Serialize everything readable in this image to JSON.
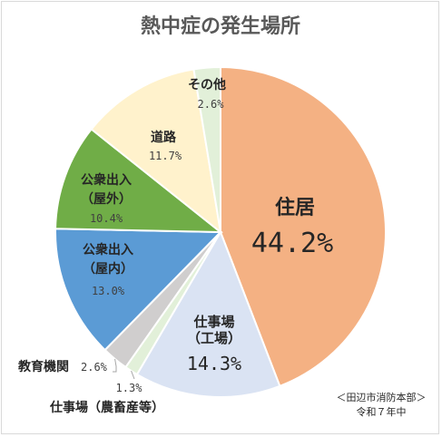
{
  "chart_data": {
    "type": "pie",
    "title": "熱中症の発生場所",
    "slices": [
      {
        "name": "住居",
        "value": 44.2,
        "label": "44.2%",
        "color": "#F4B183"
      },
      {
        "name": "仕事場（工場）",
        "name_lines": [
          "仕事場",
          "（工場）"
        ],
        "value": 14.3,
        "label": "14.3%",
        "color": "#DAE3F3"
      },
      {
        "name": "仕事場（農畜産等）",
        "value": 1.3,
        "label": "1.3%",
        "color": "#E2F0D9"
      },
      {
        "name": "教育機関",
        "value": 2.6,
        "label": "2.6%",
        "color": "#D0CECE"
      },
      {
        "name": "公衆出入（屋内）",
        "name_lines": [
          "公衆出入",
          "（屋内）"
        ],
        "value": 13.0,
        "label": "13.0%",
        "color": "#5B9BD5"
      },
      {
        "name": "公衆出入（屋外）",
        "name_lines": [
          "公衆出入",
          "（屋外）"
        ],
        "value": 10.4,
        "label": "10.4%",
        "color": "#70AD47"
      },
      {
        "name": "道路",
        "value": 11.7,
        "label": "11.7%",
        "color": "#FFF2CC"
      },
      {
        "name": "その他",
        "value": 2.6,
        "label": "2.6%",
        "color": "#E2F0D9"
      }
    ],
    "source_lines": [
      "＜田辺市消防本部＞",
      "令和７年中"
    ],
    "legend": "none"
  }
}
